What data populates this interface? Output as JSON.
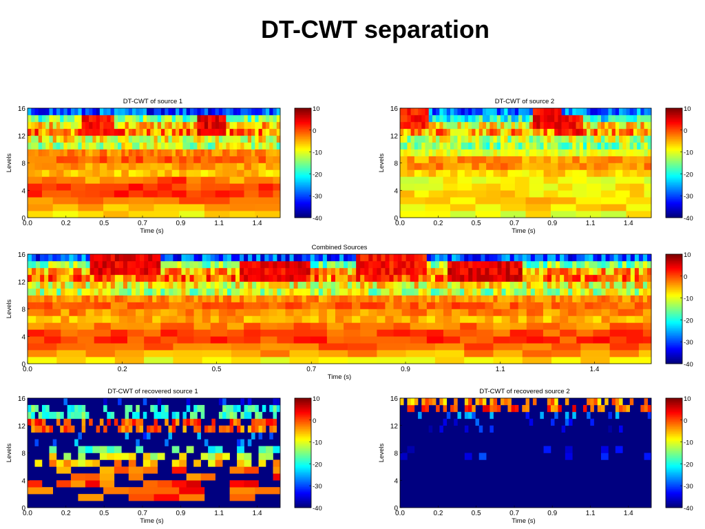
{
  "page_title": "DT-CWT separation",
  "colorbar": {
    "ticks": [
      "10",
      "0",
      "-10",
      "-20",
      "-30",
      "-40"
    ],
    "colormap": "jet",
    "range": [
      -40,
      10
    ]
  },
  "chart_data": [
    {
      "id": "source1",
      "type": "heatmap",
      "title": "DT-CWT  of source 1",
      "xlabel": "Time (s)",
      "ylabel": "Levels",
      "xticks": [
        "0.0",
        "0.2",
        "0.5",
        "0.7",
        "0.9",
        "1.1",
        "1.4"
      ],
      "yticks": [
        "0",
        "4",
        "8",
        "12",
        "16"
      ],
      "xlim": [
        0,
        1.55
      ],
      "ylim": [
        0,
        16
      ],
      "zlim": [
        -40,
        10
      ],
      "level_mean_dB": [
        -8,
        -5,
        -2,
        1,
        1,
        -3,
        -6,
        -4,
        -1,
        -3,
        -12,
        -9,
        -2,
        -6,
        -16,
        -30
      ],
      "hot_spots": [
        {
          "t": 0.42,
          "level": 13,
          "dB": 6
        },
        {
          "t": 1.12,
          "level": 13,
          "dB": 8
        },
        {
          "t": 0.85,
          "level": 4,
          "dB": 4
        }
      ]
    },
    {
      "id": "source2",
      "type": "heatmap",
      "title": "DT-CWT  of source 2",
      "xlabel": "Time (s)",
      "ylabel": "Levels",
      "xticks": [
        "0.0",
        "0.2",
        "0.5",
        "0.7",
        "0.9",
        "1.1",
        "1.4"
      ],
      "yticks": [
        "0",
        "4",
        "8",
        "12",
        "16"
      ],
      "xlim": [
        0,
        1.55
      ],
      "ylim": [
        0,
        16
      ],
      "zlim": [
        -40,
        10
      ],
      "level_mean_dB": [
        -9,
        -7,
        -6,
        -7,
        -8,
        -9,
        -7,
        -3,
        -4,
        -10,
        -14,
        -12,
        -4,
        -8,
        -20,
        -28
      ],
      "hot_spots": [
        {
          "t": 0.08,
          "level": 14,
          "dB": 6
        },
        {
          "t": 0.9,
          "level": 14,
          "dB": 7
        },
        {
          "t": 1.02,
          "level": 13,
          "dB": 6
        }
      ]
    },
    {
      "id": "combined",
      "type": "heatmap",
      "title": "Combined Sources",
      "xlabel": "Time (s)",
      "ylabel": "Levels",
      "xticks": [
        "0.0",
        "0.2",
        "0.5",
        "0.7",
        "0.9",
        "1.1",
        "1.4"
      ],
      "yticks": [
        "0",
        "4",
        "8",
        "12",
        "16"
      ],
      "xlim": [
        0,
        1.55
      ],
      "ylim": [
        0,
        16
      ],
      "zlim": [
        -40,
        10
      ],
      "level_mean_dB": [
        -8,
        -4,
        -1,
        1,
        0,
        -2,
        -5,
        -3,
        -1,
        -3,
        -12,
        -9,
        -2,
        -5,
        -15,
        -30
      ],
      "hot_spots": [
        {
          "t": 0.24,
          "level": 14,
          "dB": 8
        },
        {
          "t": 0.61,
          "level": 13,
          "dB": 7
        },
        {
          "t": 1.13,
          "level": 13,
          "dB": 8
        },
        {
          "t": 0.9,
          "level": 14,
          "dB": 6
        }
      ]
    },
    {
      "id": "recovered1",
      "type": "heatmap",
      "title": "DT-CWT  of recovered source 1",
      "xlabel": "Time (s)",
      "ylabel": "Levels",
      "xticks": [
        "0.0",
        "0.2",
        "0.5",
        "0.7",
        "0.9",
        "1.1",
        "1.4"
      ],
      "yticks": [
        "0",
        "4",
        "8",
        "12",
        "16"
      ],
      "xlim": [
        0,
        1.55
      ],
      "ylim": [
        0,
        16
      ],
      "zlim": [
        -40,
        10
      ],
      "background_dB": -40,
      "level_mean_dB": [
        -40,
        -3,
        -2,
        -1,
        -2,
        -3,
        -8,
        -12,
        -20,
        -30,
        -30,
        -4,
        -2,
        -20,
        -20,
        -35
      ]
    },
    {
      "id": "recovered2",
      "type": "heatmap",
      "title": "DT-CWT  of recovered source 2",
      "xlabel": "Time (s)",
      "ylabel": "Levels",
      "xticks": [
        "0.0",
        "0.2",
        "0.5",
        "0.7",
        "0.9",
        "1.1",
        "1.4"
      ],
      "yticks": [
        "0",
        "4",
        "8",
        "12",
        "16"
      ],
      "xlim": [
        0,
        1.55
      ],
      "ylim": [
        0,
        16
      ],
      "zlim": [
        -40,
        10
      ],
      "background_dB": -40,
      "level_mean_dB": [
        -40,
        -40,
        -40,
        -40,
        -40,
        -40,
        -40,
        -36,
        -35,
        -37,
        -37,
        -36,
        -34,
        -30,
        -2,
        -6
      ]
    }
  ]
}
